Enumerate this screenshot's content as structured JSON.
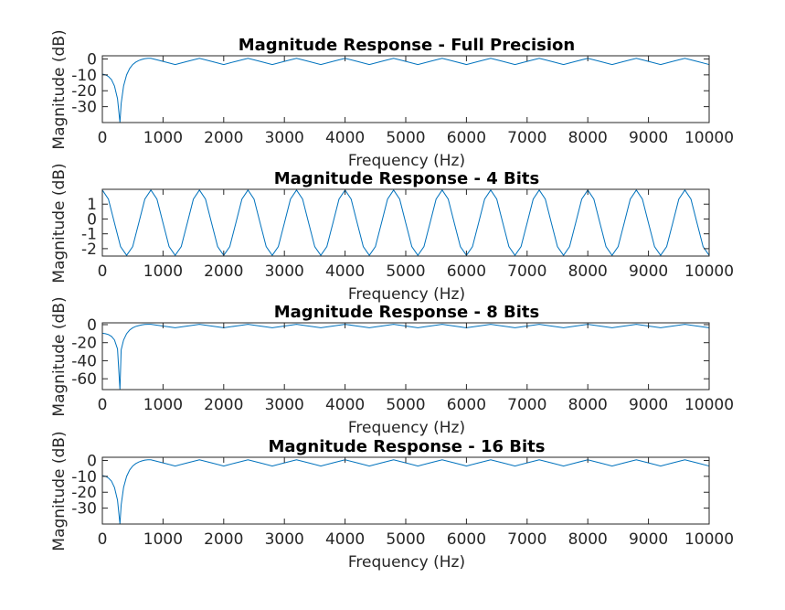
{
  "colors": {
    "line": "#0072BD",
    "axis": "#262626",
    "background": "#ffffff"
  },
  "chart_data": [
    {
      "type": "line",
      "title": "Magnitude Response - Full Precision",
      "xlabel": "Frequency (Hz)",
      "ylabel": "Magnitude (dB)",
      "xlim": [
        0,
        10000
      ],
      "ylim": [
        -40,
        2
      ],
      "xticks": [
        0,
        1000,
        2000,
        3000,
        4000,
        5000,
        6000,
        7000,
        8000,
        9000,
        10000
      ],
      "yticks": [
        0,
        -10,
        -20,
        -30
      ],
      "grid": false,
      "series": [
        {
          "x": [
            0,
            50,
            100,
            150,
            200,
            250,
            290,
            310,
            350,
            400,
            450,
            500,
            550,
            600,
            650,
            700,
            750,
            800,
            1000,
            1200,
            1400,
            1600,
            1800,
            2000,
            2200,
            2400,
            2600,
            2800,
            3000,
            3200,
            3400,
            3600,
            3800,
            4000,
            4200,
            4400,
            4600,
            4800,
            5000,
            5200,
            5400,
            5600,
            5800,
            6000,
            6200,
            6400,
            6600,
            6800,
            7000,
            7200,
            7400,
            7600,
            7800,
            8000,
            8200,
            8400,
            8600,
            8800,
            9000,
            9200,
            9400,
            9600,
            9800,
            10000
          ],
          "y": [
            -9.5,
            -10,
            -11,
            -13,
            -17,
            -25,
            -40,
            -28,
            -17,
            -10,
            -6,
            -3.5,
            -2,
            -1,
            -0.3,
            0.2,
            0.4,
            0.4,
            -1.5,
            -3.5,
            -1.5,
            0.4,
            -1.5,
            -3.5,
            -1.5,
            0.4,
            -1.5,
            -3.5,
            -1.5,
            0.4,
            -1.5,
            -3.5,
            -1.5,
            0.4,
            -1.5,
            -3.5,
            -1.5,
            0.4,
            -1.5,
            -3.5,
            -1.5,
            0.4,
            -1.5,
            -3.5,
            -1.5,
            0.4,
            -1.5,
            -3.5,
            -1.5,
            0.4,
            -1.5,
            -3.5,
            -1.5,
            0.4,
            -1.5,
            -3.5,
            -1.5,
            0.4,
            -1.5,
            -3.5,
            -1.5,
            0.4,
            -1.5,
            -3.5
          ]
        }
      ]
    },
    {
      "type": "line",
      "title": "Magnitude Response - 4 Bits",
      "xlabel": "Frequency (Hz)",
      "ylabel": "Magnitude (dB)",
      "xlim": [
        0,
        10000
      ],
      "ylim": [
        -2.5,
        2
      ],
      "xticks": [
        0,
        1000,
        2000,
        3000,
        4000,
        5000,
        6000,
        7000,
        8000,
        9000,
        10000
      ],
      "yticks": [
        1,
        0,
        -1,
        -2
      ],
      "grid": false,
      "series": [
        {
          "x": [
            0,
            100,
            200,
            300,
            400,
            500,
            600,
            700,
            800,
            900,
            1000,
            1100,
            1200,
            1300,
            1400,
            1500,
            1600,
            1700,
            1800,
            1900,
            2000,
            2100,
            2200,
            2300,
            2400,
            2500,
            2600,
            2700,
            2800,
            2900,
            3000,
            3100,
            3200,
            3300,
            3400,
            3500,
            3600,
            3700,
            3800,
            3900,
            4000,
            4100,
            4200,
            4300,
            4400,
            4500,
            4600,
            4700,
            4800,
            4900,
            5000,
            5100,
            5200,
            5300,
            5400,
            5500,
            5600,
            5700,
            5800,
            5900,
            6000,
            6100,
            6200,
            6300,
            6400,
            6500,
            6600,
            6700,
            6800,
            6900,
            7000,
            7100,
            7200,
            7300,
            7400,
            7500,
            7600,
            7700,
            7800,
            7900,
            8000,
            8100,
            8200,
            8300,
            8400,
            8500,
            8600,
            8700,
            8800,
            8900,
            9000,
            9100,
            9200,
            9300,
            9400,
            9500,
            9600,
            9700,
            9800,
            9900,
            10000
          ],
          "y": [
            1.95,
            1.34,
            -0.27,
            -1.86,
            -2.45,
            -1.86,
            -0.27,
            1.34,
            1.95,
            1.34,
            -0.27,
            -1.86,
            -2.45,
            -1.86,
            -0.27,
            1.34,
            1.95,
            1.34,
            -0.27,
            -1.86,
            -2.45,
            -1.86,
            -0.27,
            1.34,
            1.95,
            1.34,
            -0.27,
            -1.86,
            -2.45,
            -1.86,
            -0.27,
            1.34,
            1.95,
            1.34,
            -0.27,
            -1.86,
            -2.45,
            -1.86,
            -0.27,
            1.34,
            1.95,
            1.34,
            -0.27,
            -1.86,
            -2.45,
            -1.86,
            -0.27,
            1.34,
            1.95,
            1.34,
            -0.27,
            -1.86,
            -2.45,
            -1.86,
            -0.27,
            1.34,
            1.95,
            1.34,
            -0.27,
            -1.86,
            -2.45,
            -1.86,
            -0.27,
            1.34,
            1.95,
            1.34,
            -0.27,
            -1.86,
            -2.45,
            -1.86,
            -0.27,
            1.34,
            1.95,
            1.34,
            -0.27,
            -1.86,
            -2.45,
            -1.86,
            -0.27,
            1.34,
            1.95,
            1.34,
            -0.27,
            -1.86,
            -2.45,
            -1.86,
            -0.27,
            1.34,
            1.95,
            1.34,
            -0.27,
            -1.86,
            -2.45,
            -1.86,
            -0.27,
            1.34,
            1.95,
            1.34,
            -0.27,
            -1.86,
            -2.45
          ]
        }
      ]
    },
    {
      "type": "line",
      "title": "Magnitude Response - 8 Bits",
      "xlabel": "Frequency (Hz)",
      "ylabel": "Magnitude (dB)",
      "xlim": [
        0,
        10000
      ],
      "ylim": [
        -72,
        2
      ],
      "xticks": [
        0,
        1000,
        2000,
        3000,
        4000,
        5000,
        6000,
        7000,
        8000,
        9000,
        10000
      ],
      "yticks": [
        0,
        -20,
        -40,
        -60
      ],
      "grid": false,
      "series": [
        {
          "x": [
            0,
            50,
            100,
            150,
            200,
            250,
            290,
            310,
            350,
            400,
            450,
            500,
            550,
            600,
            650,
            700,
            750,
            800,
            1000,
            1200,
            1400,
            1600,
            1800,
            2000,
            2200,
            2400,
            2600,
            2800,
            3000,
            3200,
            3400,
            3600,
            3800,
            4000,
            4200,
            4400,
            4600,
            4800,
            5000,
            5200,
            5400,
            5600,
            5800,
            6000,
            6200,
            6400,
            6600,
            6800,
            7000,
            7200,
            7400,
            7600,
            7800,
            8000,
            8200,
            8400,
            8600,
            8800,
            9000,
            9200,
            9400,
            9600,
            9800,
            10000
          ],
          "y": [
            -9.5,
            -10,
            -11,
            -13,
            -17,
            -27,
            -72,
            -28,
            -17,
            -10,
            -6,
            -3.5,
            -2,
            -1,
            -0.3,
            0.2,
            0.4,
            0.4,
            -1.5,
            -3.5,
            -1.5,
            0.4,
            -1.5,
            -3.5,
            -1.5,
            0.4,
            -1.5,
            -3.5,
            -1.5,
            0.4,
            -1.5,
            -3.5,
            -1.5,
            0.4,
            -1.5,
            -3.5,
            -1.5,
            0.4,
            -1.5,
            -3.5,
            -1.5,
            0.4,
            -1.5,
            -3.5,
            -1.5,
            0.4,
            -1.5,
            -3.5,
            -1.5,
            0.4,
            -1.5,
            -3.5,
            -1.5,
            0.4,
            -1.5,
            -3.5,
            -1.5,
            0.4,
            -1.5,
            -3.5,
            -1.5,
            0.4,
            -1.5,
            -3.5
          ]
        }
      ]
    },
    {
      "type": "line",
      "title": "Magnitude Response - 16 Bits",
      "xlabel": "Frequency (Hz)",
      "ylabel": "Magnitude (dB)",
      "xlim": [
        0,
        10000
      ],
      "ylim": [
        -40,
        2
      ],
      "xticks": [
        0,
        1000,
        2000,
        3000,
        4000,
        5000,
        6000,
        7000,
        8000,
        9000,
        10000
      ],
      "yticks": [
        0,
        -10,
        -20,
        -30
      ],
      "grid": false,
      "series": [
        {
          "x": [
            0,
            50,
            100,
            150,
            200,
            250,
            290,
            310,
            350,
            400,
            450,
            500,
            550,
            600,
            650,
            700,
            750,
            800,
            1000,
            1200,
            1400,
            1600,
            1800,
            2000,
            2200,
            2400,
            2600,
            2800,
            3000,
            3200,
            3400,
            3600,
            3800,
            4000,
            4200,
            4400,
            4600,
            4800,
            5000,
            5200,
            5400,
            5600,
            5800,
            6000,
            6200,
            6400,
            6600,
            6800,
            7000,
            7200,
            7400,
            7600,
            7800,
            8000,
            8200,
            8400,
            8600,
            8800,
            9000,
            9200,
            9400,
            9600,
            9800,
            10000
          ],
          "y": [
            -9.5,
            -10,
            -11,
            -13,
            -17,
            -25,
            -40,
            -28,
            -17,
            -10,
            -6,
            -3.5,
            -2,
            -1,
            -0.3,
            0.2,
            0.4,
            0.4,
            -1.5,
            -3.5,
            -1.5,
            0.4,
            -1.5,
            -3.5,
            -1.5,
            0.4,
            -1.5,
            -3.5,
            -1.5,
            0.4,
            -1.5,
            -3.5,
            -1.5,
            0.4,
            -1.5,
            -3.5,
            -1.5,
            0.4,
            -1.5,
            -3.5,
            -1.5,
            0.4,
            -1.5,
            -3.5,
            -1.5,
            0.4,
            -1.5,
            -3.5,
            -1.5,
            0.4,
            -1.5,
            -3.5,
            -1.5,
            0.4,
            -1.5,
            -3.5,
            -1.5,
            0.4,
            -1.5,
            -3.5,
            -1.5,
            0.4,
            -1.5,
            -3.5
          ]
        }
      ]
    }
  ]
}
